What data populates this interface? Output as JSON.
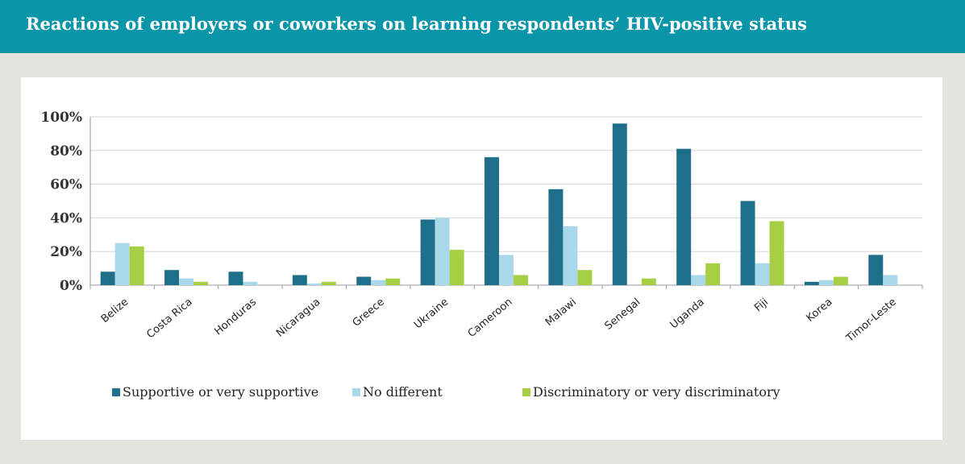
{
  "header": {
    "title": "Reactions of employers or coworkers on learning respondents’ HIV-positive status"
  },
  "colors": {
    "header_bg": "#0b95a8",
    "supportive": "#1f6f8b",
    "no_different": "#a8d8ea",
    "discriminatory": "#a6cf45"
  },
  "chart_data": {
    "type": "bar",
    "title": "",
    "xlabel": "",
    "ylabel": "",
    "ylim": [
      0,
      100
    ],
    "yticks": [
      "0%",
      "20%",
      "40%",
      "60%",
      "80%",
      "100%"
    ],
    "ytick_values": [
      0,
      20,
      40,
      60,
      80,
      100
    ],
    "grid": true,
    "legend_position": "bottom",
    "categories": [
      "Belize",
      "Costa Rica",
      "Honduras",
      "Nicaragua",
      "Greece",
      "Ukraine",
      "Cameroon",
      "Malawi",
      "Senegal",
      "Uganda",
      "Fiji",
      "Korea",
      "Timor-Leste"
    ],
    "series": [
      {
        "name": "Supportive or very supportive",
        "color": "#1f6f8b",
        "values": [
          8,
          9,
          8,
          6,
          5,
          39,
          76,
          57,
          96,
          81,
          50,
          2,
          18
        ]
      },
      {
        "name": "No different",
        "color": "#a8d8ea",
        "values": [
          25,
          4,
          2,
          1,
          3,
          40,
          18,
          35,
          0,
          6,
          13,
          3,
          6
        ]
      },
      {
        "name": "Discriminatory or very discriminatory",
        "color": "#a6cf45",
        "values": [
          23,
          2,
          0,
          2,
          4,
          21,
          6,
          9,
          4,
          13,
          38,
          5,
          0
        ]
      }
    ]
  }
}
